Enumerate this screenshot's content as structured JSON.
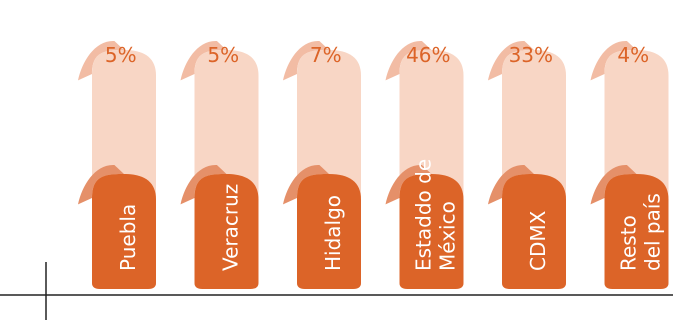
{
  "chart_data": {
    "type": "bar",
    "categories": [
      [
        "Puebla"
      ],
      [
        "Veracruz"
      ],
      [
        "Hidalgo"
      ],
      [
        "Estaddo de",
        "México"
      ],
      [
        "CDMX"
      ],
      [
        "Resto",
        "del país"
      ]
    ],
    "values": [
      5,
      5,
      7,
      46,
      33,
      4
    ],
    "value_labels": [
      "5%",
      "5%",
      "7%",
      "46%",
      "33%",
      "4%"
    ],
    "ylim": [
      0,
      100
    ],
    "grid": false,
    "colors": {
      "bar": "#DC6428",
      "bar_edge": "#E59069",
      "background_shape": "#F8D6C5",
      "background_shape_edge": "#F2BCA4",
      "value_text": "#DC6428",
      "bar_label_text": "#FFFFFF",
      "axis_line": "#222222"
    }
  }
}
